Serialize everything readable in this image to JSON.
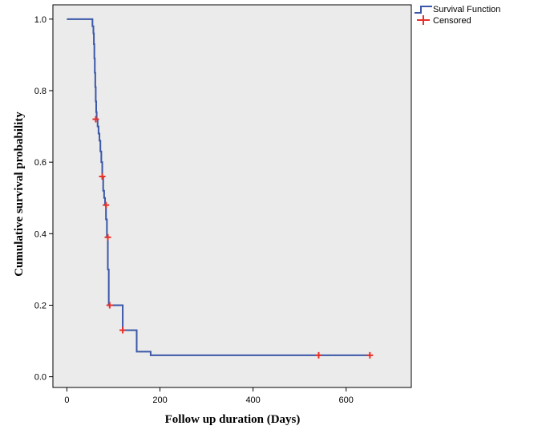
{
  "chart_data": {
    "type": "line",
    "title": "",
    "xlabel": "Follow up duration (Days)",
    "ylabel": "Cumulative survival probability",
    "xlim": [
      -30,
      740
    ],
    "ylim": [
      -0.03,
      1.04
    ],
    "xticks": [
      0,
      200,
      400,
      600
    ],
    "yticks": [
      0.0,
      0.2,
      0.4,
      0.6,
      0.8,
      1.0
    ],
    "xtick_labels": [
      "0",
      "200",
      "400",
      "600"
    ],
    "ytick_labels": [
      "0.0",
      "0.2",
      "0.4",
      "0.6",
      "0.8",
      "1.0"
    ],
    "grid": false,
    "legend_position": "top-right",
    "background_color": "#ebebeb",
    "series": [
      {
        "name": "Survival Function",
        "color": "#3b58a8",
        "kind": "step",
        "x": [
          0,
          55,
          57,
          58,
          59,
          60,
          61,
          62,
          63,
          64,
          66,
          68,
          70,
          72,
          74,
          76,
          78,
          80,
          82,
          84,
          86,
          88,
          90,
          92,
          120,
          150,
          180,
          652
        ],
        "y": [
          1.0,
          0.98,
          0.96,
          0.93,
          0.89,
          0.85,
          0.81,
          0.77,
          0.74,
          0.72,
          0.7,
          0.68,
          0.66,
          0.63,
          0.6,
          0.56,
          0.52,
          0.5,
          0.48,
          0.44,
          0.39,
          0.3,
          0.2,
          0.2,
          0.13,
          0.07,
          0.06,
          0.06
        ]
      },
      {
        "name": "Censored",
        "color": "#e8302a",
        "kind": "marker",
        "x": [
          62,
          76,
          84,
          88,
          92,
          120,
          541,
          651
        ],
        "y": [
          0.72,
          0.56,
          0.48,
          0.39,
          0.2,
          0.13,
          0.06,
          0.06
        ]
      }
    ]
  },
  "legend": {
    "items": [
      {
        "label": "Survival Function"
      },
      {
        "label": "Censored"
      }
    ]
  }
}
